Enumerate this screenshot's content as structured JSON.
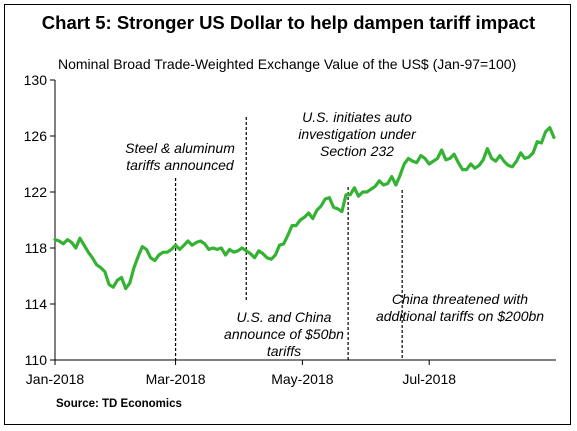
{
  "header": {
    "title": "Chart 5: Stronger US Dollar to help dampen tariff impact",
    "subtitle": "Nominal Broad Trade-Weighted Exchange Value of the US$ (Jan-97=100)"
  },
  "footer": {
    "source": "Source: TD Economics"
  },
  "chart_data": {
    "type": "line",
    "title": "Chart 5: Stronger US Dollar to help dampen tariff impact",
    "subtitle": "Nominal Broad Trade-Weighted Exchange Value of the US$ (Jan-97=100)",
    "xlabel": "",
    "ylabel": "",
    "xlim": [
      "2018-01-02",
      "2018-08-31"
    ],
    "ylim": [
      110,
      130
    ],
    "yticks": [
      110,
      114,
      118,
      122,
      126,
      130
    ],
    "ytick_labels": [
      "110",
      "114",
      "118",
      "122",
      "126",
      "130"
    ],
    "xticks": [
      "2018-01-02",
      "2018-03-01",
      "2018-05-01",
      "2018-07-01"
    ],
    "xtick_labels": [
      "Jan-2018",
      "Mar-2018",
      "May-2018",
      "Jul-2018"
    ],
    "grid": false,
    "legend": "none",
    "color": "#33b233",
    "series": [
      {
        "x": [
          "2018-01-02",
          "2018-01-04",
          "2018-01-06",
          "2018-01-08",
          "2018-01-10",
          "2018-01-12",
          "2018-01-14",
          "2018-01-16",
          "2018-01-18",
          "2018-01-20",
          "2018-01-22",
          "2018-01-24",
          "2018-01-26",
          "2018-01-28",
          "2018-01-30",
          "2018-02-01",
          "2018-02-03",
          "2018-02-05",
          "2018-02-07",
          "2018-02-09",
          "2018-02-11",
          "2018-02-13",
          "2018-02-15",
          "2018-02-17",
          "2018-02-19",
          "2018-02-21",
          "2018-02-23",
          "2018-02-25",
          "2018-02-27",
          "2018-03-01",
          "2018-03-03",
          "2018-03-05",
          "2018-03-07",
          "2018-03-09",
          "2018-03-11",
          "2018-03-13",
          "2018-03-15",
          "2018-03-17",
          "2018-03-19",
          "2018-03-21",
          "2018-03-23",
          "2018-03-25",
          "2018-03-27",
          "2018-03-29",
          "2018-03-31",
          "2018-04-02",
          "2018-04-04",
          "2018-04-06",
          "2018-04-08",
          "2018-04-10",
          "2018-04-12",
          "2018-04-14",
          "2018-04-16",
          "2018-04-18",
          "2018-04-20",
          "2018-04-22",
          "2018-04-24",
          "2018-04-26",
          "2018-04-28",
          "2018-04-30",
          "2018-05-02",
          "2018-05-04",
          "2018-05-06",
          "2018-05-08",
          "2018-05-10",
          "2018-05-12",
          "2018-05-14",
          "2018-05-16",
          "2018-05-18",
          "2018-05-20",
          "2018-05-22",
          "2018-05-24",
          "2018-05-26",
          "2018-05-28",
          "2018-05-30",
          "2018-06-01",
          "2018-06-03",
          "2018-06-05",
          "2018-06-07",
          "2018-06-09",
          "2018-06-11",
          "2018-06-13",
          "2018-06-15",
          "2018-06-17",
          "2018-06-19",
          "2018-06-21",
          "2018-06-23",
          "2018-06-25",
          "2018-06-27",
          "2018-06-29",
          "2018-07-01",
          "2018-07-03",
          "2018-07-05",
          "2018-07-07",
          "2018-07-09",
          "2018-07-11",
          "2018-07-13",
          "2018-07-15",
          "2018-07-17",
          "2018-07-19",
          "2018-07-21",
          "2018-07-23",
          "2018-07-25",
          "2018-07-27",
          "2018-07-29",
          "2018-07-31",
          "2018-08-02",
          "2018-08-04",
          "2018-08-06",
          "2018-08-08",
          "2018-08-10",
          "2018-08-12",
          "2018-08-14",
          "2018-08-16",
          "2018-08-18",
          "2018-08-20",
          "2018-08-22",
          "2018-08-24",
          "2018-08-26",
          "2018-08-28",
          "2018-08-30"
        ],
        "values": [
          118.6,
          118.5,
          118.3,
          118.6,
          118.4,
          118.0,
          118.7,
          118.2,
          117.7,
          117.3,
          116.8,
          116.6,
          116.3,
          115.4,
          115.2,
          115.7,
          115.9,
          115.1,
          115.5,
          116.6,
          117.4,
          118.1,
          117.9,
          117.3,
          117.1,
          117.5,
          117.7,
          117.7,
          117.9,
          118.2,
          117.9,
          118.2,
          118.5,
          118.2,
          118.4,
          118.5,
          118.3,
          117.9,
          118.0,
          117.9,
          118.0,
          117.5,
          117.9,
          117.7,
          117.8,
          118.0,
          117.8,
          117.6,
          117.3,
          117.8,
          117.6,
          117.3,
          117.2,
          117.5,
          118.2,
          118.3,
          118.9,
          119.6,
          119.6,
          120.0,
          120.2,
          120.5,
          120.1,
          120.7,
          121.0,
          121.5,
          121.6,
          120.9,
          120.8,
          120.6,
          121.8,
          121.8,
          122.3,
          121.7,
          122.0,
          122.0,
          122.2,
          122.4,
          122.8,
          122.5,
          122.6,
          123.1,
          122.5,
          123.2,
          124.0,
          124.4,
          124.2,
          124.1,
          124.6,
          124.4,
          124.0,
          124.2,
          124.4,
          125.0,
          124.3,
          124.4,
          124.7,
          124.1,
          123.6,
          123.6,
          124.0,
          123.7,
          123.9,
          124.3,
          125.1,
          124.4,
          124.2,
          124.6,
          124.2,
          123.9,
          123.8,
          124.2,
          124.8,
          124.4,
          124.5,
          124.8,
          125.6,
          125.5,
          126.3,
          126.6,
          125.9
        ]
      }
    ],
    "events": [
      {
        "date": "2018-03-01",
        "label_lines": [
          "Steel & aluminum",
          "tariffs announced"
        ]
      },
      {
        "date": "2018-04-04",
        "label_lines": [
          "U.S. and China",
          "announce of $50bn",
          "tariffs"
        ]
      },
      {
        "date": "2018-05-23",
        "label_lines": [
          "U.S. initiates auto",
          "investigation under",
          "Section 232"
        ]
      },
      {
        "date": "2018-06-18",
        "label_lines": [
          "China threatened with",
          "additional tariffs on $200bn"
        ]
      }
    ]
  }
}
